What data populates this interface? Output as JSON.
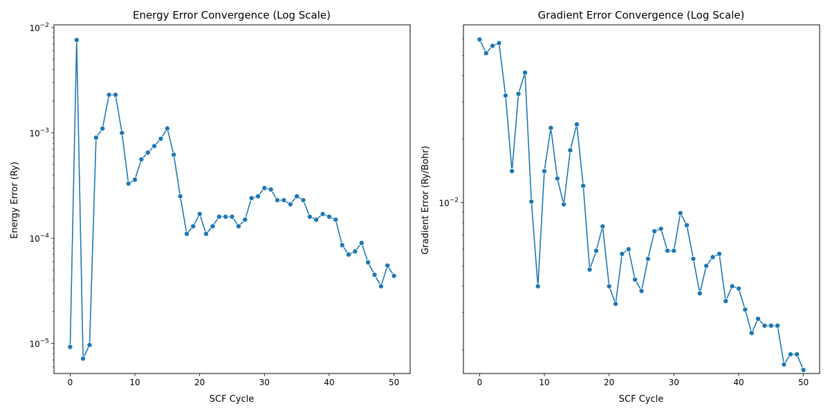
{
  "chart_data": [
    {
      "type": "line",
      "title": "Energy Error Convergence (Log Scale)",
      "xlabel": "SCF Cycle",
      "ylabel": "Energy Error (Ry)",
      "yscale": "log",
      "xlim": [
        -2.5,
        52.5
      ],
      "ylim": [
        5.2e-06,
        0.0106
      ],
      "xticks": [
        0,
        10,
        20,
        30,
        40,
        50
      ],
      "yticks": [
        {
          "value": 1e-05,
          "base": "10",
          "exp": "−5"
        },
        {
          "value": 0.0001,
          "base": "10",
          "exp": "−4"
        },
        {
          "value": 0.001,
          "base": "10",
          "exp": "−3"
        },
        {
          "value": 0.01,
          "base": "10",
          "exp": "−2"
        }
      ],
      "color": "#1f77b4",
      "marker": "circle",
      "grid": false,
      "x": [
        0,
        1,
        2,
        3,
        4,
        5,
        6,
        7,
        8,
        9,
        10,
        11,
        12,
        13,
        14,
        15,
        16,
        17,
        18,
        19,
        20,
        21,
        22,
        23,
        24,
        25,
        26,
        27,
        28,
        29,
        30,
        31,
        32,
        33,
        34,
        35,
        36,
        37,
        38,
        39,
        40,
        41,
        42,
        43,
        44,
        45,
        46,
        47,
        48,
        49,
        50
      ],
      "y": [
        9.3e-06,
        0.0076,
        7.2e-06,
        9.7e-06,
        0.0009,
        0.0011,
        0.0023,
        0.0023,
        0.001,
        0.00033,
        0.00036,
        0.00056,
        0.00065,
        0.00075,
        0.00088,
        0.0011,
        0.00062,
        0.00025,
        0.00011,
        0.00013,
        0.00017,
        0.00011,
        0.00013,
        0.00016,
        0.00016,
        0.00016,
        0.00013,
        0.00015,
        0.00024,
        0.00025,
        0.0003,
        0.00029,
        0.00023,
        0.00023,
        0.00021,
        0.00025,
        0.00023,
        0.00016,
        0.00015,
        0.00017,
        0.00016,
        0.00015,
        8.6e-05,
        7e-05,
        7.5e-05,
        9e-05,
        5.9e-05,
        4.5e-05,
        3.5e-05,
        5.5e-05,
        4.4e-05
      ]
    },
    {
      "type": "line",
      "title": "Gradient Error Convergence (Log Scale)",
      "xlabel": "SCF Cycle",
      "ylabel": "Gradient Error (Ry/Bohr)",
      "yscale": "log",
      "xlim": [
        -2.5,
        52.5
      ],
      "ylim": [
        0.00154,
        0.0698
      ],
      "xticks": [
        0,
        10,
        20,
        30,
        40,
        50
      ],
      "yticks": [
        {
          "value": 0.01,
          "base": "10",
          "exp": "−2"
        }
      ],
      "color": "#1f77b4",
      "marker": "circle",
      "grid": false,
      "x": [
        0,
        1,
        2,
        3,
        4,
        5,
        6,
        7,
        8,
        9,
        10,
        11,
        12,
        13,
        14,
        15,
        16,
        17,
        18,
        19,
        20,
        21,
        22,
        23,
        24,
        25,
        26,
        27,
        28,
        29,
        30,
        31,
        32,
        33,
        34,
        35,
        36,
        37,
        38,
        39,
        40,
        41,
        42,
        43,
        44,
        45,
        46,
        47,
        48,
        49,
        50
      ],
      "y": [
        0.0595,
        0.0512,
        0.0555,
        0.0572,
        0.0322,
        0.0141,
        0.0328,
        0.0414,
        0.0101,
        0.004,
        0.0141,
        0.0226,
        0.013,
        0.0098,
        0.0177,
        0.0235,
        0.012,
        0.0048,
        0.0059,
        0.0077,
        0.004,
        0.0033,
        0.0057,
        0.006,
        0.0043,
        0.0038,
        0.0054,
        0.0073,
        0.0075,
        0.0059,
        0.0059,
        0.0089,
        0.0078,
        0.0054,
        0.0037,
        0.005,
        0.0055,
        0.0057,
        0.0034,
        0.004,
        0.0039,
        0.0031,
        0.0024,
        0.0028,
        0.0026,
        0.0026,
        0.0026,
        0.0017,
        0.0019,
        0.0019,
        0.0016
      ]
    }
  ]
}
